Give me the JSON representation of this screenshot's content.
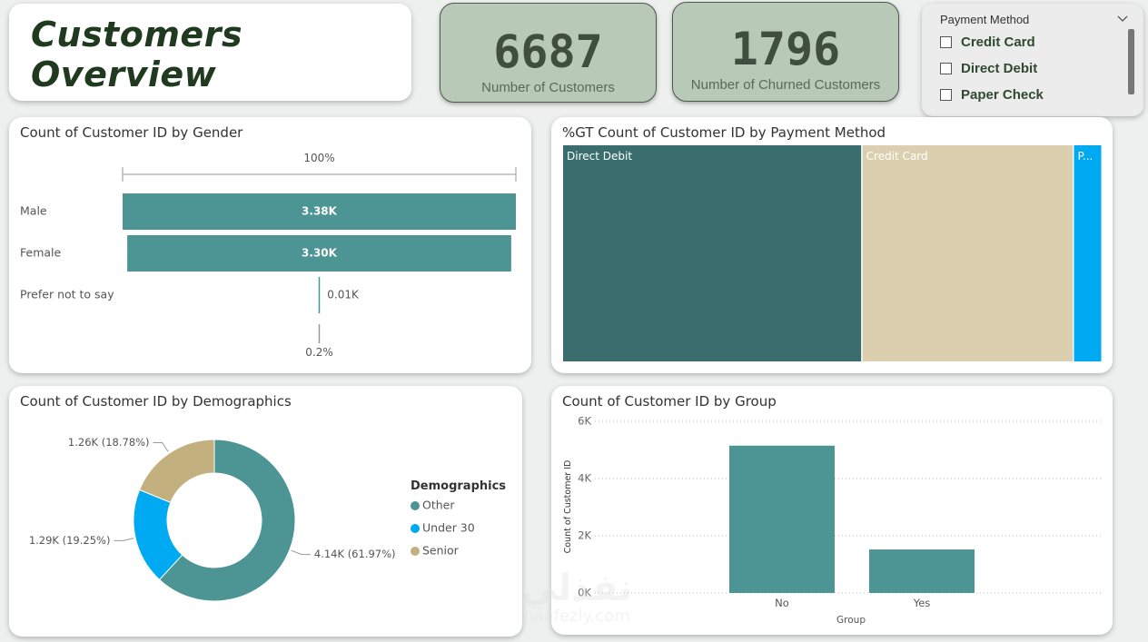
{
  "header": {
    "title": "Customers Overview"
  },
  "kpis": {
    "customers": {
      "value": "6687",
      "label": "Number of Customers"
    },
    "churned": {
      "value": "1796",
      "label": "Number of Churned Customers"
    }
  },
  "slicer": {
    "title": "Payment Method",
    "options": [
      "Credit Card",
      "Direct Debit",
      "Paper Check"
    ]
  },
  "colors": {
    "teal": "#4d9494",
    "dark_teal": "#3a6e6e",
    "beige": "#dccfb0",
    "blue": "#00aaf2",
    "tan": "#c2b07f"
  },
  "chart_data": [
    {
      "type": "bar",
      "orientation": "horizontal",
      "title": "Count of Customer ID by Gender",
      "categories": [
        "Male",
        "Female",
        "Prefer not to say"
      ],
      "values": [
        3380,
        3300,
        10
      ],
      "data_labels": [
        "3.38K",
        "3.30K",
        "0.01K"
      ],
      "annotations": {
        "top_percent": "100%",
        "bottom_percent": "0.2%"
      },
      "color": "#4d9494"
    },
    {
      "type": "treemap",
      "title": "%GT Count of Customer ID by Payment Method",
      "categories": [
        "Direct Debit",
        "Credit Card",
        "P..."
      ],
      "values": [
        55.5,
        39.2,
        5.3
      ],
      "colors": [
        "#3a6e6e",
        "#dccfb0",
        "#00aaf2"
      ]
    },
    {
      "type": "pie",
      "variant": "donut",
      "title": "Count of Customer ID by Demographics",
      "legend_title": "Demographics",
      "legend_position": "right",
      "categories": [
        "Other",
        "Under 30",
        "Senior"
      ],
      "values": [
        4140,
        1290,
        1260
      ],
      "percents": [
        61.97,
        19.25,
        18.78
      ],
      "data_labels": [
        "4.14K (61.97%)",
        "1.29K (19.25%)",
        "1.26K (18.78%)"
      ],
      "colors": [
        "#4d9494",
        "#00aaf2",
        "#c2b07f"
      ]
    },
    {
      "type": "bar",
      "title": "Count of Customer ID by Group",
      "categories": [
        "No",
        "Yes"
      ],
      "values": [
        5150,
        1520
      ],
      "xlabel": "Group",
      "ylabel": "Count of Customer ID",
      "yticks": [
        "0K",
        "2K",
        "4K",
        "6K"
      ],
      "ylim": [
        0,
        6000
      ],
      "grid": true,
      "color": "#4d9494"
    }
  ],
  "watermark": {
    "arabic": "نفذلي",
    "latin": "naafezly.com"
  }
}
